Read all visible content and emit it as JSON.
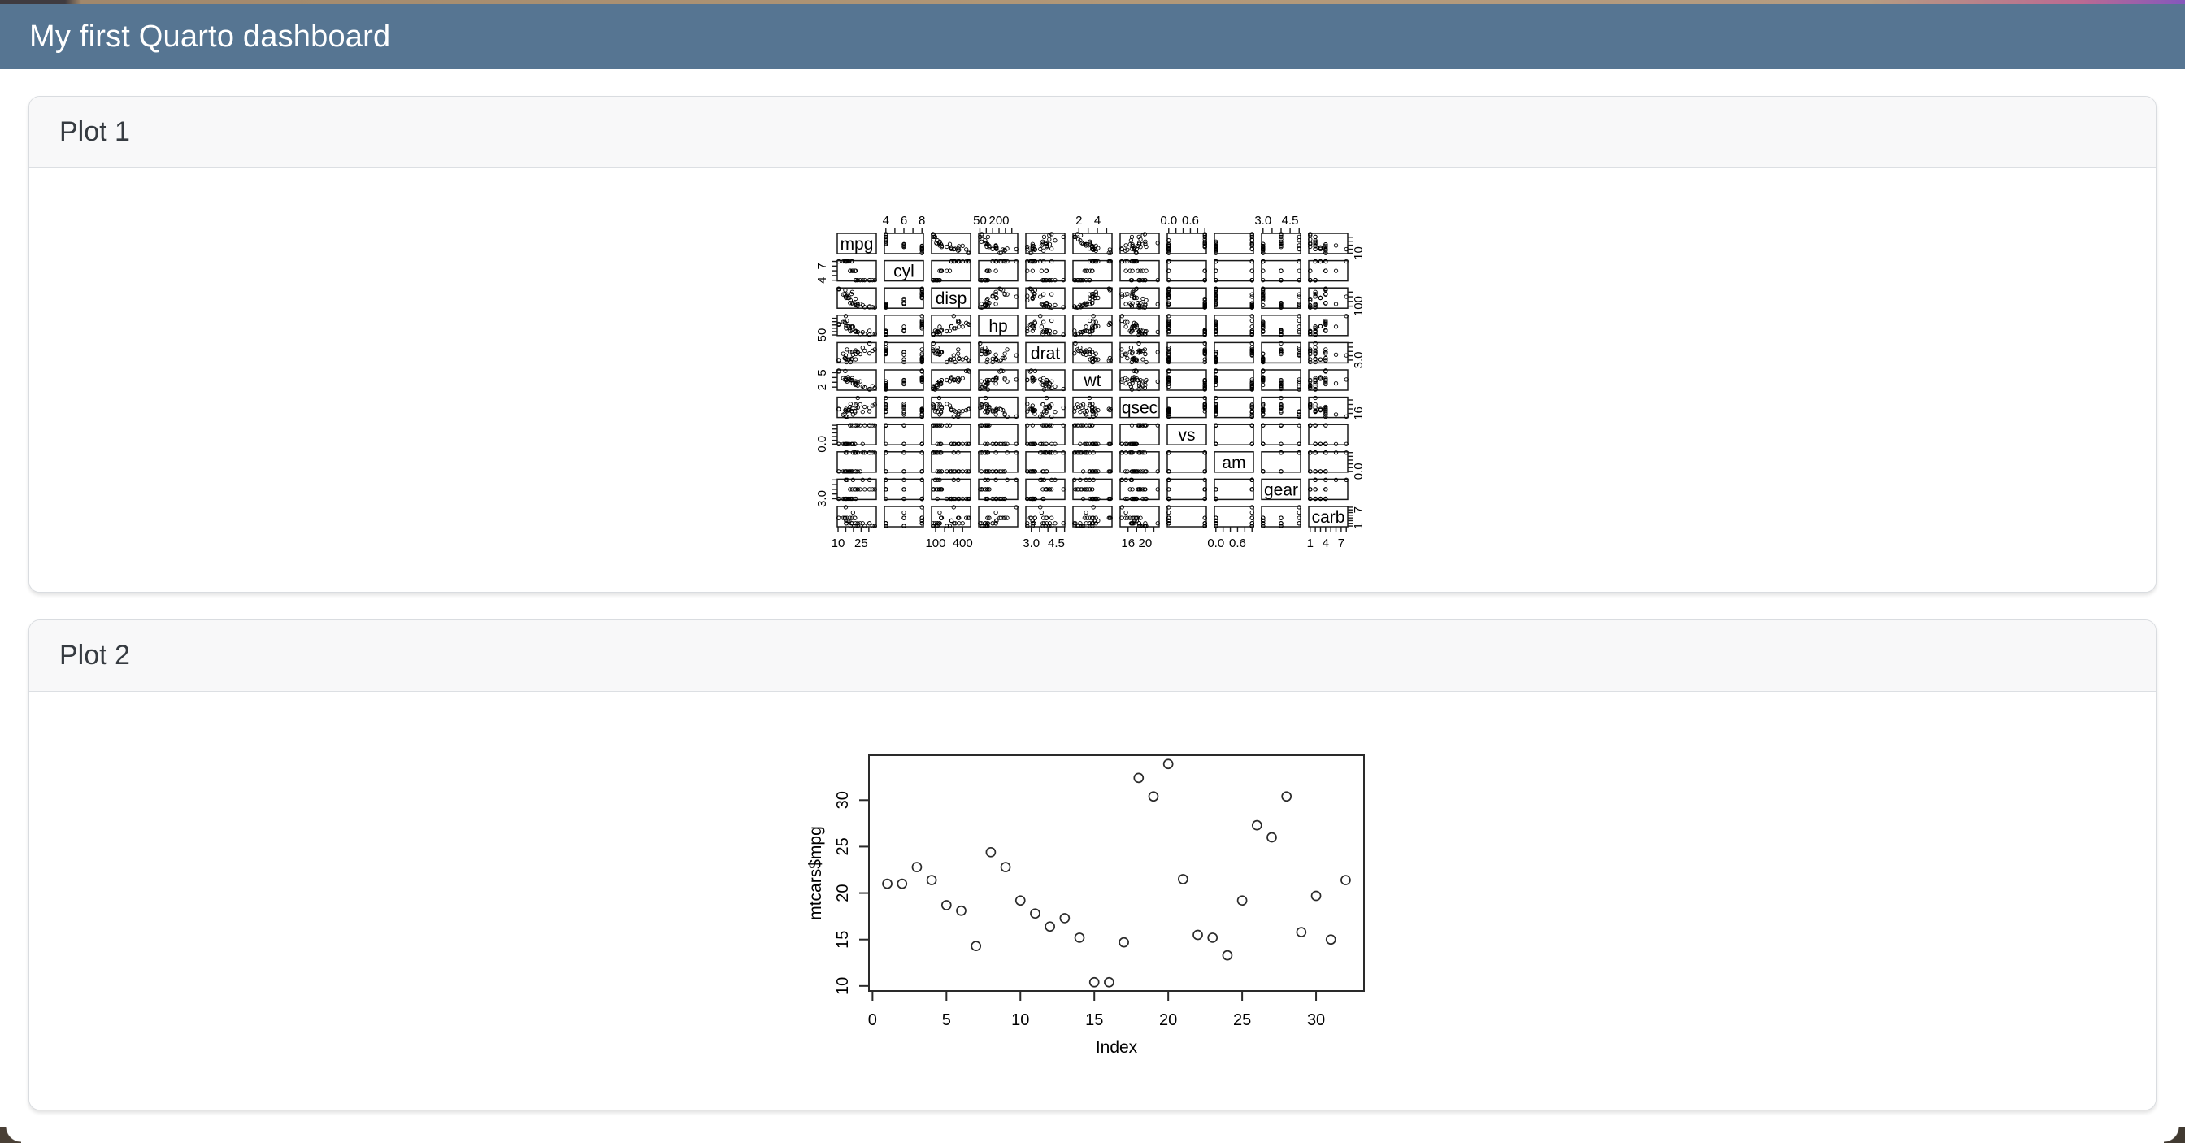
{
  "navbar": {
    "title": "My first Quarto dashboard",
    "bg_color": "#567592",
    "text_color": "#ffffff"
  },
  "cards": [
    {
      "title": "Plot 1"
    },
    {
      "title": "Plot 2"
    }
  ],
  "chart_data": [
    {
      "type": "scatter-matrix",
      "title": "pairs plot of mtcars",
      "point_style": "open-circle",
      "variables": [
        "mpg",
        "cyl",
        "disp",
        "hp",
        "drat",
        "wt",
        "qsec",
        "vs",
        "am",
        "gear",
        "carb"
      ],
      "observations": [
        [
          21.0,
          6,
          160.0,
          110,
          3.9,
          2.62,
          16.46,
          0,
          1,
          4,
          4
        ],
        [
          21.0,
          6,
          160.0,
          110,
          3.9,
          2.875,
          17.02,
          0,
          1,
          4,
          4
        ],
        [
          22.8,
          4,
          108.0,
          93,
          3.85,
          2.32,
          18.61,
          1,
          1,
          4,
          1
        ],
        [
          21.4,
          6,
          258.0,
          110,
          3.08,
          3.215,
          19.44,
          1,
          0,
          3,
          1
        ],
        [
          18.7,
          8,
          360.0,
          175,
          3.15,
          3.44,
          17.02,
          0,
          0,
          3,
          2
        ],
        [
          18.1,
          6,
          225.0,
          105,
          2.76,
          3.46,
          20.22,
          1,
          0,
          3,
          1
        ],
        [
          14.3,
          8,
          360.0,
          245,
          3.21,
          3.57,
          15.84,
          0,
          0,
          3,
          4
        ],
        [
          24.4,
          4,
          146.7,
          62,
          3.69,
          3.19,
          20.0,
          1,
          0,
          4,
          2
        ],
        [
          22.8,
          4,
          140.8,
          95,
          3.92,
          3.15,
          22.9,
          1,
          0,
          4,
          2
        ],
        [
          19.2,
          6,
          167.6,
          123,
          3.92,
          3.44,
          18.3,
          1,
          0,
          4,
          4
        ],
        [
          17.8,
          6,
          167.6,
          123,
          3.92,
          3.44,
          18.9,
          1,
          0,
          4,
          4
        ],
        [
          16.4,
          8,
          275.8,
          180,
          3.07,
          4.07,
          17.4,
          0,
          0,
          3,
          3
        ],
        [
          17.3,
          8,
          275.8,
          180,
          3.07,
          3.73,
          17.6,
          0,
          0,
          3,
          3
        ],
        [
          15.2,
          8,
          275.8,
          180,
          3.07,
          3.78,
          18.0,
          0,
          0,
          3,
          3
        ],
        [
          10.4,
          8,
          472.0,
          205,
          2.93,
          5.25,
          17.98,
          0,
          0,
          3,
          4
        ],
        [
          10.4,
          8,
          460.0,
          215,
          3.0,
          5.424,
          17.82,
          0,
          0,
          3,
          4
        ],
        [
          14.7,
          8,
          440.0,
          230,
          3.23,
          5.345,
          17.42,
          0,
          0,
          3,
          4
        ],
        [
          32.4,
          4,
          78.7,
          66,
          4.08,
          2.2,
          19.47,
          1,
          1,
          4,
          1
        ],
        [
          30.4,
          4,
          75.7,
          52,
          4.93,
          1.615,
          18.52,
          1,
          1,
          4,
          2
        ],
        [
          33.9,
          4,
          71.1,
          65,
          4.22,
          1.835,
          19.9,
          1,
          1,
          4,
          1
        ],
        [
          21.5,
          4,
          120.1,
          97,
          3.7,
          2.465,
          20.01,
          1,
          0,
          3,
          1
        ],
        [
          15.5,
          8,
          318.0,
          150,
          2.76,
          3.52,
          16.87,
          0,
          0,
          3,
          2
        ],
        [
          15.2,
          8,
          304.0,
          150,
          3.15,
          3.435,
          17.3,
          0,
          0,
          3,
          2
        ],
        [
          13.3,
          8,
          350.0,
          245,
          3.73,
          3.84,
          15.41,
          0,
          0,
          3,
          4
        ],
        [
          19.2,
          8,
          400.0,
          175,
          3.08,
          3.845,
          17.05,
          0,
          0,
          3,
          2
        ],
        [
          27.3,
          4,
          79.0,
          66,
          4.08,
          1.935,
          18.9,
          1,
          1,
          4,
          1
        ],
        [
          26.0,
          4,
          120.3,
          91,
          4.43,
          2.14,
          16.7,
          0,
          1,
          5,
          2
        ],
        [
          30.4,
          4,
          95.1,
          113,
          3.77,
          1.513,
          16.9,
          1,
          1,
          5,
          2
        ],
        [
          15.8,
          8,
          351.0,
          264,
          4.22,
          3.17,
          14.5,
          0,
          1,
          5,
          4
        ],
        [
          19.7,
          6,
          145.0,
          175,
          3.62,
          2.77,
          15.5,
          0,
          1,
          5,
          6
        ],
        [
          15.0,
          8,
          301.0,
          335,
          3.54,
          3.57,
          14.6,
          0,
          1,
          5,
          8
        ],
        [
          21.4,
          4,
          121.0,
          109,
          4.11,
          2.78,
          18.6,
          1,
          1,
          4,
          2
        ]
      ],
      "axes": {
        "mpg": {
          "ticks": [
            10,
            15,
            20,
            25,
            30
          ],
          "h_labels": [
            [
              10,
              "10"
            ],
            [
              25,
              "25"
            ]
          ],
          "v_labels": [
            [
              10,
              "10"
            ]
          ]
        },
        "cyl": {
          "ticks": [
            4,
            5,
            6,
            7,
            8
          ],
          "h_labels": [
            [
              4,
              "4"
            ],
            [
              6,
              "6"
            ],
            [
              8,
              "8"
            ]
          ],
          "v_labels": [
            [
              4,
              "4"
            ],
            [
              7,
              "7"
            ]
          ]
        },
        "disp": {
          "ticks": [
            100,
            200,
            300,
            400
          ],
          "h_labels": [
            [
              100,
              "100"
            ],
            [
              400,
              "400"
            ]
          ],
          "v_labels": [
            [
              100,
              "100"
            ]
          ]
        },
        "hp": {
          "ticks": [
            50,
            100,
            150,
            200,
            250,
            300
          ],
          "h_labels": [
            [
              50,
              "50"
            ],
            [
              200,
              "200"
            ]
          ],
          "v_labels": [
            [
              50,
              "50"
            ]
          ]
        },
        "drat": {
          "ticks": [
            3.0,
            3.5,
            4.0,
            4.5,
            5.0
          ],
          "h_labels": [
            [
              3.0,
              "3.0"
            ],
            [
              4.5,
              "4.5"
            ]
          ],
          "v_labels": [
            [
              3.0,
              "3.0"
            ]
          ]
        },
        "wt": {
          "ticks": [
            2,
            3,
            4,
            5
          ],
          "h_labels": [
            [
              2,
              "2"
            ],
            [
              4,
              "4"
            ]
          ],
          "v_labels": [
            [
              2,
              "2"
            ],
            [
              5,
              "5"
            ]
          ]
        },
        "qsec": {
          "ticks": [
            16,
            18,
            20,
            22
          ],
          "h_labels": [
            [
              16,
              "16"
            ],
            [
              20,
              "20"
            ]
          ],
          "v_labels": [
            [
              16,
              "16"
            ]
          ]
        },
        "vs": {
          "ticks": [
            0,
            0.2,
            0.4,
            0.6,
            0.8,
            1.0
          ],
          "h_labels": [
            [
              0,
              "0.0"
            ],
            [
              0.6,
              "0.6"
            ]
          ],
          "v_labels": [
            [
              0,
              "0.0"
            ]
          ]
        },
        "am": {
          "ticks": [
            0,
            0.2,
            0.4,
            0.6,
            0.8,
            1.0
          ],
          "h_labels": [
            [
              0,
              "0.0"
            ],
            [
              0.6,
              "0.6"
            ]
          ],
          "v_labels": [
            [
              0,
              "0.0"
            ]
          ]
        },
        "gear": {
          "ticks": [
            3.0,
            3.5,
            4.0,
            4.5,
            5.0
          ],
          "h_labels": [
            [
              3.0,
              "3.0"
            ],
            [
              4.5,
              "4.5"
            ]
          ],
          "v_labels": [
            [
              3.0,
              "3.0"
            ]
          ]
        },
        "carb": {
          "ticks": [
            1,
            2,
            3,
            4,
            5,
            6,
            7,
            8
          ],
          "h_labels": [
            [
              1,
              "1"
            ],
            [
              4,
              "4"
            ],
            [
              7,
              "7"
            ]
          ],
          "v_labels": [
            [
              1,
              "1"
            ],
            [
              7,
              "7"
            ]
          ]
        }
      },
      "layout": {
        "top_axis_cols": [
          1,
          3,
          5,
          7,
          9
        ],
        "bottom_axis_cols": [
          0,
          2,
          4,
          6,
          8,
          10
        ],
        "left_axis_rows": [
          1,
          3,
          5,
          7,
          9
        ],
        "right_axis_rows": [
          0,
          2,
          4,
          6,
          8,
          10
        ],
        "range_expand": 0.04,
        "grid": false
      }
    },
    {
      "type": "scatter",
      "title": "",
      "xlabel": "Index",
      "ylabel": "mtcars$mpg",
      "point_style": "open-circle",
      "y": [
        21.0,
        21.0,
        22.8,
        21.4,
        18.7,
        18.1,
        14.3,
        24.4,
        22.8,
        19.2,
        17.8,
        16.4,
        17.3,
        15.2,
        10.4,
        10.4,
        14.7,
        32.4,
        30.4,
        33.9,
        21.5,
        15.5,
        15.2,
        13.3,
        19.2,
        27.3,
        26.0,
        30.4,
        15.8,
        19.7,
        15.0,
        21.4
      ],
      "x_start": 1,
      "x_ticks": [
        [
          0,
          "0"
        ],
        [
          5,
          "5"
        ],
        [
          10,
          "10"
        ],
        [
          15,
          "15"
        ],
        [
          20,
          "20"
        ],
        [
          25,
          "25"
        ],
        [
          30,
          "30"
        ]
      ],
      "y_ticks": [
        [
          10,
          "10"
        ],
        [
          15,
          "15"
        ],
        [
          20,
          "20"
        ],
        [
          25,
          "25"
        ],
        [
          30,
          "30"
        ]
      ],
      "xlim": [
        -0.24,
        33.24
      ],
      "ylim": [
        9.46,
        34.84
      ],
      "grid": false,
      "legend": null
    }
  ]
}
